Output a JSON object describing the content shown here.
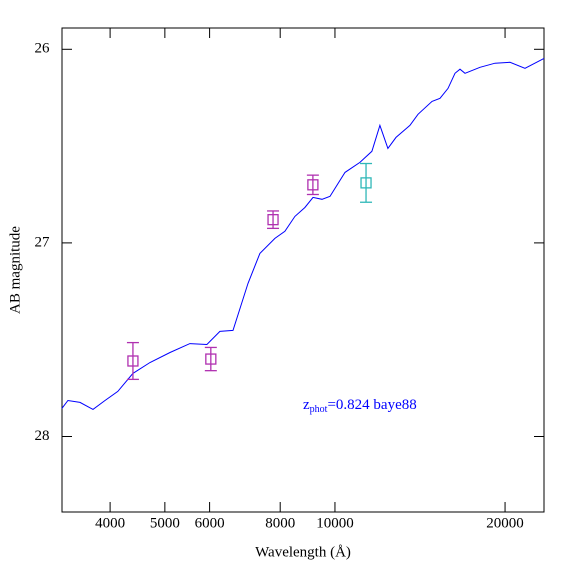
{
  "chart_data": {
    "type": "line",
    "x_label": "Wavelength (Å)",
    "y_label": "AB magnitude",
    "xlim": [
      3288,
      23440
    ],
    "ylim": [
      28.39,
      25.89
    ],
    "log_x": true,
    "xticks": [
      4000,
      5000,
      6000,
      8000,
      10000,
      20000
    ],
    "yticks": [
      26,
      27,
      28
    ],
    "series": [
      {
        "color": "#0000ff",
        "x": [
          3287,
          3368,
          3538,
          3730,
          3917,
          4128,
          4390,
          4707,
          5105,
          5536,
          5935,
          6258,
          6600,
          7015,
          7366,
          7830,
          8155,
          8494,
          8849,
          9143,
          9484,
          9799,
          10416,
          11071,
          11627,
          12012,
          12410,
          12823,
          13574,
          14026,
          14849,
          15341,
          15849,
          16309,
          16643,
          16987,
          18060,
          19199,
          20404,
          21694,
          23440
        ],
        "values": [
          27.855,
          27.814,
          27.824,
          27.86,
          27.814,
          27.767,
          27.674,
          27.618,
          27.566,
          27.52,
          27.525,
          27.457,
          27.452,
          27.209,
          27.054,
          26.977,
          26.94,
          26.863,
          26.817,
          26.765,
          26.775,
          26.76,
          26.636,
          26.584,
          26.527,
          26.393,
          26.512,
          26.455,
          26.393,
          26.336,
          26.269,
          26.253,
          26.202,
          26.124,
          26.103,
          26.124,
          26.093,
          26.072,
          26.067,
          26.098,
          26.047
        ]
      }
    ],
    "points": {
      "x": [
        4390,
        6030,
        7770,
        9140,
        11350
      ],
      "values": [
        27.61,
        27.6,
        26.88,
        26.7,
        26.69
      ],
      "errors": [
        0.095,
        0.06,
        0.045,
        0.05,
        0.1
      ],
      "colors": [
        "#b030b0",
        "#b030b0",
        "#b030b0",
        "#b030b0",
        "#30b8b8"
      ]
    },
    "annotation": {
      "text": "z",
      "sub": "phot",
      "rest": "=0.824  baye88",
      "color": "#0000ff"
    }
  }
}
